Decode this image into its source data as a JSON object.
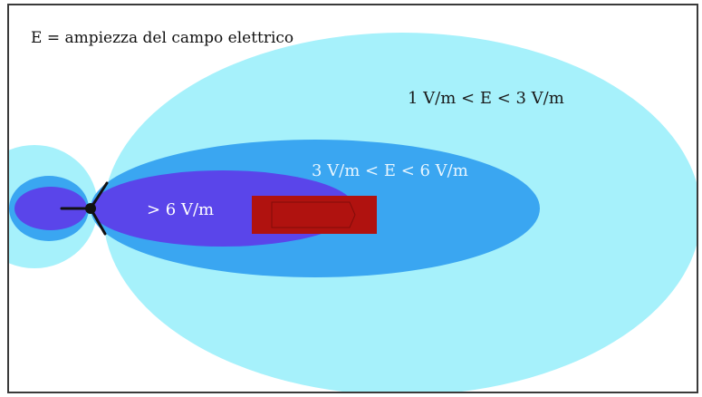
{
  "title": "E = ampiezza del campo elettrico",
  "zones": {
    "low": {
      "label": "1 V/m < E < 3 V/m",
      "color": "#a6f1fb",
      "text_color": "#1a1a1a"
    },
    "medium": {
      "label": "3 V/m < E < 6 V/m",
      "color": "#3aa6f1",
      "text_color": "#e8f6ff"
    },
    "high": {
      "label": "> 6 V/m",
      "color": "#5a45ea",
      "text_color": "#ffffff"
    }
  },
  "colors": {
    "border": "#3a3a3a",
    "target": "#b0120f",
    "antenna": "#111111",
    "background": "#ffffff"
  },
  "icons": {
    "antenna": "antenna-icon",
    "target": "target-block-icon"
  }
}
